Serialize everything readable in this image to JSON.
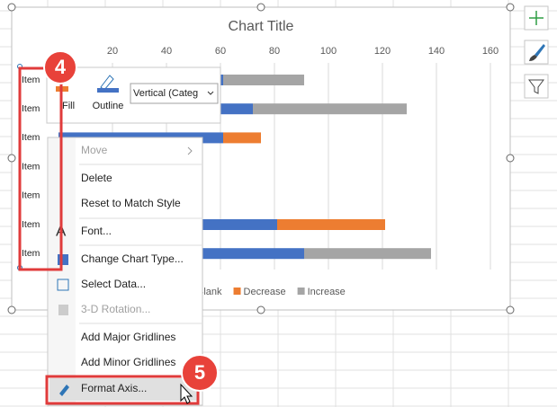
{
  "chart": {
    "type": "bar",
    "title": "Chart Title",
    "categories": [
      "Item",
      "Item",
      "Item",
      "Item",
      "Item",
      "Item",
      "Item"
    ],
    "series": [
      {
        "name": "Blank",
        "color": "#4472c4",
        "values": [
          61,
          72,
          61,
          null,
          null,
          81,
          91
        ]
      },
      {
        "name": "Decrease",
        "color": "#ed7d31",
        "values": [
          null,
          null,
          14,
          null,
          null,
          40,
          null
        ]
      },
      {
        "name": "Increase",
        "color": "#a5a5a5",
        "values": [
          30,
          57,
          null,
          null,
          null,
          null,
          47
        ]
      }
    ],
    "xlim": [
      0,
      160
    ],
    "xticks": [
      20,
      40,
      60,
      80,
      100,
      120,
      140,
      160
    ],
    "grid": true
  },
  "toolbar": {
    "fill": "Fill",
    "outline": "Outline",
    "dropdown": "Vertical (Categ"
  },
  "menu": {
    "items": [
      {
        "label": "Move",
        "enabled": false
      },
      {
        "label": "Delete",
        "enabled": true
      },
      {
        "label": "Reset to Match Style",
        "enabled": true
      },
      {
        "label": "Font...",
        "enabled": true
      },
      {
        "label": "Change Chart Type...",
        "enabled": true
      },
      {
        "label": "Select Data...",
        "enabled": true
      },
      {
        "label": "3-D Rotation...",
        "enabled": false
      },
      {
        "label": "Add Major Gridlines",
        "enabled": true
      },
      {
        "label": "Add Minor Gridlines",
        "enabled": true
      },
      {
        "label": "Format Axis...",
        "enabled": true
      }
    ]
  },
  "callouts": [
    "4",
    "5"
  ]
}
